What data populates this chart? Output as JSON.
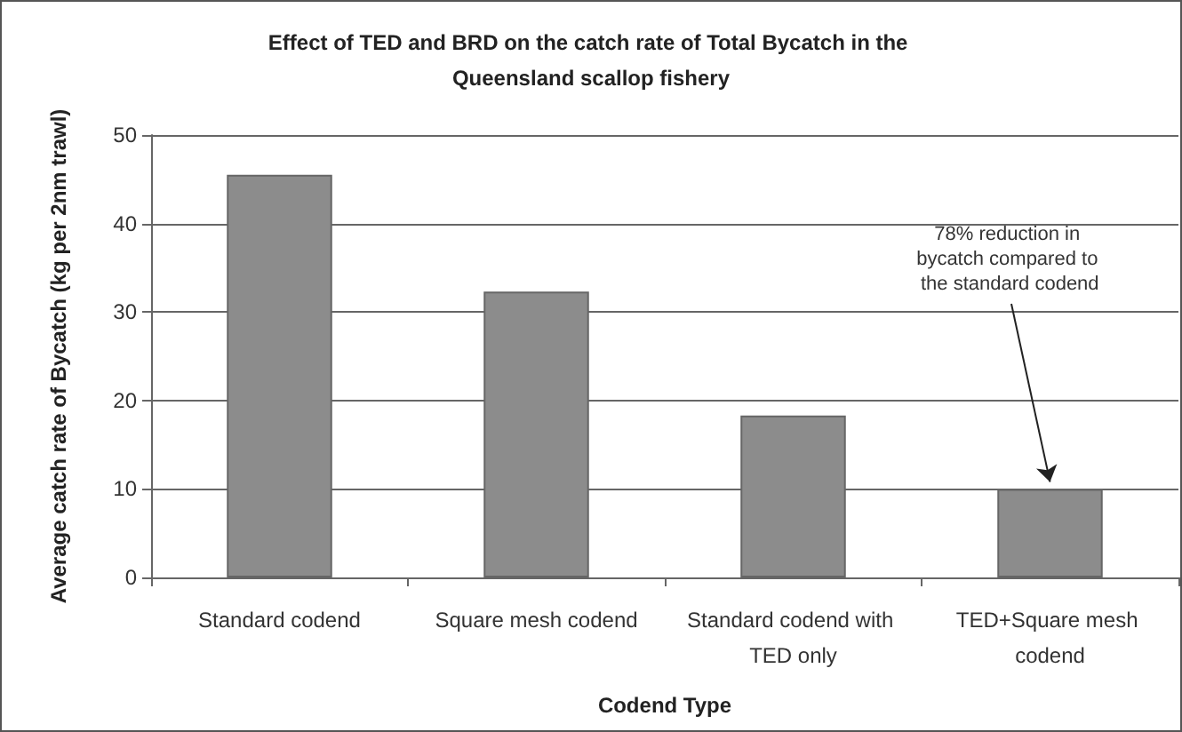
{
  "chart_data": {
    "type": "bar",
    "title": "Effect of TED and BRD on the catch rate of Total Bycatch in the Queensland scallop fishery",
    "xlabel": "Codend Type",
    "ylabel": "Average catch rate of Bycatch (kg per 2nm trawl)",
    "categories": [
      "Standard codend",
      "Square mesh codend",
      "Standard codend with TED only",
      "TED+Square mesh codend"
    ],
    "values": [
      45.5,
      32.3,
      18.3,
      10.0
    ],
    "color": "#8c8c8c",
    "ylim": [
      0,
      50
    ],
    "yticks": [
      0,
      10,
      20,
      30,
      40,
      50
    ],
    "grid": "y",
    "annotations": [
      {
        "text": "78% reduction in bycatch compared to the standard codend",
        "x": "TED+Square mesh codend",
        "y": 10
      }
    ]
  }
}
